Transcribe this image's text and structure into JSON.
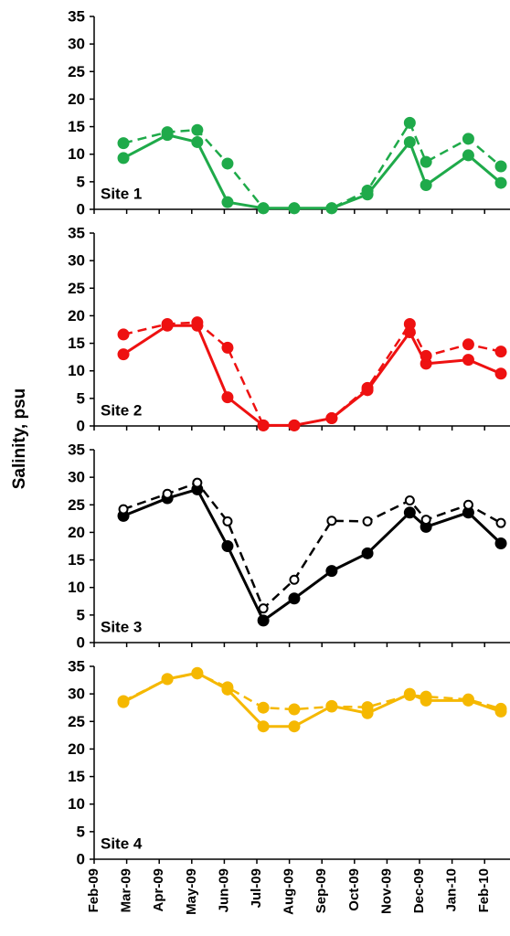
{
  "y_axis_label": "Salinity, psu",
  "chart_data": [
    {
      "type": "line",
      "annotation": "Site 1",
      "x": [
        0.9,
        2.25,
        3.17,
        4.1,
        5.2,
        6.15,
        7.3,
        8.4,
        9.7,
        10.2,
        11.5,
        12.5
      ],
      "series": [
        {
          "color": "#1faa4a",
          "dashed": false,
          "open_markers": false,
          "values": [
            9.3,
            13.5,
            12.2,
            1.3,
            0.2,
            0.2,
            0.2,
            2.7,
            12.2,
            4.4,
            9.8,
            4.8
          ]
        },
        {
          "color": "#1faa4a",
          "dashed": true,
          "open_markers": false,
          "values": [
            12.0,
            14.0,
            14.4,
            8.3,
            0.2,
            0.2,
            0.2,
            3.4,
            15.7,
            8.6,
            12.8,
            7.8
          ]
        }
      ],
      "xlim": [
        0,
        12.78
      ],
      "xticks": [
        0,
        1,
        2,
        3,
        4,
        5,
        6,
        7,
        8,
        9,
        10,
        11,
        12
      ],
      "ylim": [
        0,
        35
      ],
      "yticks": [
        0,
        5,
        10,
        15,
        20,
        25,
        30,
        35
      ]
    },
    {
      "type": "line",
      "annotation": "Site 2",
      "x": [
        0.9,
        2.25,
        3.17,
        4.1,
        5.2,
        6.15,
        7.3,
        8.4,
        9.7,
        10.2,
        11.5,
        12.5
      ],
      "series": [
        {
          "color": "#ee1111",
          "dashed": false,
          "open_markers": false,
          "values": [
            13.0,
            18.2,
            18.2,
            5.2,
            0.1,
            0.1,
            1.4,
            6.5,
            17.0,
            11.3,
            12.0,
            9.5
          ]
        },
        {
          "color": "#ee1111",
          "dashed": true,
          "open_markers": false,
          "values": [
            16.6,
            18.5,
            18.8,
            14.2,
            0.1,
            0.1,
            1.4,
            6.9,
            18.5,
            12.7,
            14.8,
            13.5
          ]
        }
      ],
      "xlim": [
        0,
        12.78
      ],
      "xticks": [
        0,
        1,
        2,
        3,
        4,
        5,
        6,
        7,
        8,
        9,
        10,
        11,
        12
      ],
      "ylim": [
        0,
        35
      ],
      "yticks": [
        0,
        5,
        10,
        15,
        20,
        25,
        30,
        35
      ]
    },
    {
      "type": "line",
      "annotation": "Site 3",
      "x": [
        0.9,
        2.25,
        3.17,
        4.1,
        5.2,
        6.15,
        7.3,
        8.4,
        9.7,
        10.2,
        11.5,
        12.5
      ],
      "series": [
        {
          "color": "#000000",
          "dashed": false,
          "open_markers": false,
          "values": [
            23.0,
            26.2,
            27.8,
            17.5,
            4.0,
            8.0,
            13.0,
            16.2,
            23.6,
            21.0,
            23.6,
            18.0
          ]
        },
        {
          "color": "#000000",
          "dashed": true,
          "open_markers": true,
          "values": [
            24.2,
            27.0,
            29.0,
            22.0,
            6.2,
            11.4,
            22.1,
            22.0,
            25.8,
            22.3,
            25.0,
            21.7
          ]
        }
      ],
      "xlim": [
        0,
        12.78
      ],
      "xticks": [
        0,
        1,
        2,
        3,
        4,
        5,
        6,
        7,
        8,
        9,
        10,
        11,
        12
      ],
      "ylim": [
        0,
        35
      ],
      "yticks": [
        0,
        5,
        10,
        15,
        20,
        25,
        30,
        35
      ]
    },
    {
      "type": "line",
      "annotation": "Site 4",
      "x": [
        0.9,
        2.25,
        3.17,
        4.1,
        5.2,
        6.15,
        7.3,
        8.4,
        9.7,
        10.2,
        11.5,
        12.5
      ],
      "series": [
        {
          "color": "#f5b800",
          "dashed": false,
          "open_markers": false,
          "values": [
            28.5,
            32.7,
            33.8,
            30.8,
            24.1,
            24.1,
            27.8,
            26.5,
            30.0,
            28.8,
            28.8,
            26.8
          ]
        },
        {
          "color": "#f5b800",
          "dashed": true,
          "open_markers": false,
          "values": [
            28.7,
            32.7,
            33.7,
            31.2,
            27.5,
            27.2,
            27.7,
            27.6,
            29.8,
            29.5,
            29.0,
            27.3
          ]
        }
      ],
      "xlim": [
        0,
        12.78
      ],
      "xticks": [
        {
          "value": 0,
          "label": "Feb-09"
        },
        {
          "value": 1,
          "label": "Mar-09"
        },
        {
          "value": 2,
          "label": "Apr-09"
        },
        {
          "value": 3,
          "label": "May-09"
        },
        {
          "value": 4,
          "label": "Jun-09"
        },
        {
          "value": 5,
          "label": "Jul-09"
        },
        {
          "value": 6,
          "label": "Aug-09"
        },
        {
          "value": 7,
          "label": "Sep-09"
        },
        {
          "value": 8,
          "label": "Oct-09"
        },
        {
          "value": 9,
          "label": "Nov-09"
        },
        {
          "value": 10,
          "label": "Dec-09"
        },
        {
          "value": 11,
          "label": "Jan-10"
        },
        {
          "value": 12,
          "label": "Feb-10"
        }
      ],
      "ylim": [
        0,
        35
      ],
      "yticks": [
        0,
        5,
        10,
        15,
        20,
        25,
        30,
        35
      ]
    }
  ]
}
